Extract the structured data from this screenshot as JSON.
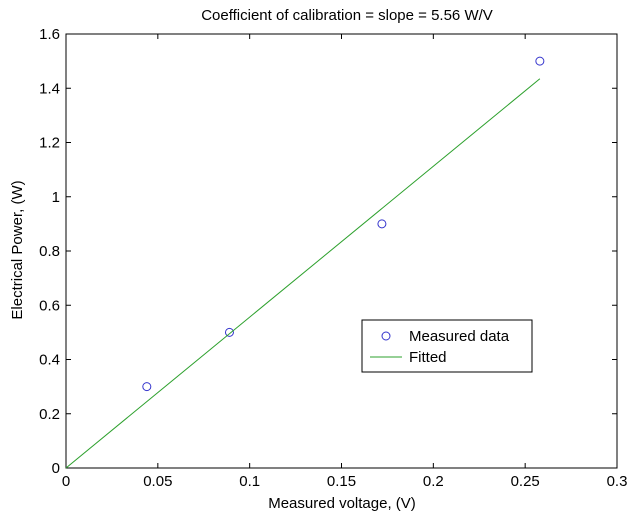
{
  "chart_data": {
    "type": "scatter",
    "title": "Coefficient of calibration = slope = 5.56 W/V",
    "xlabel": "Measured voltage, (V)",
    "ylabel": "Electrical Power, (W)",
    "xlim": [
      0,
      0.3
    ],
    "ylim": [
      0,
      1.6
    ],
    "xticks": [
      "0",
      "0.05",
      "0.1",
      "0.15",
      "0.2",
      "0.25",
      "0.3"
    ],
    "yticks": [
      "0",
      "0.2",
      "0.4",
      "0.6",
      "0.8",
      "1",
      "1.2",
      "1.4",
      "1.6"
    ],
    "xtick_values": [
      0,
      0.05,
      0.1,
      0.15,
      0.2,
      0.25,
      0.3
    ],
    "ytick_values": [
      0,
      0.2,
      0.4,
      0.6,
      0.8,
      1.0,
      1.2,
      1.4,
      1.6
    ],
    "grid": false,
    "legend_position": "center-right",
    "series": [
      {
        "name": "Measured data",
        "kind": "markers",
        "marker": "circle",
        "color": "#3333cc",
        "x": [
          0.044,
          0.089,
          0.172,
          0.258
        ],
        "y": [
          0.3,
          0.5,
          0.9,
          1.5
        ]
      },
      {
        "name": "Fitted",
        "kind": "line",
        "color": "#2ca02c",
        "x": [
          0,
          0.258
        ],
        "y": [
          0,
          1.435
        ]
      }
    ]
  }
}
